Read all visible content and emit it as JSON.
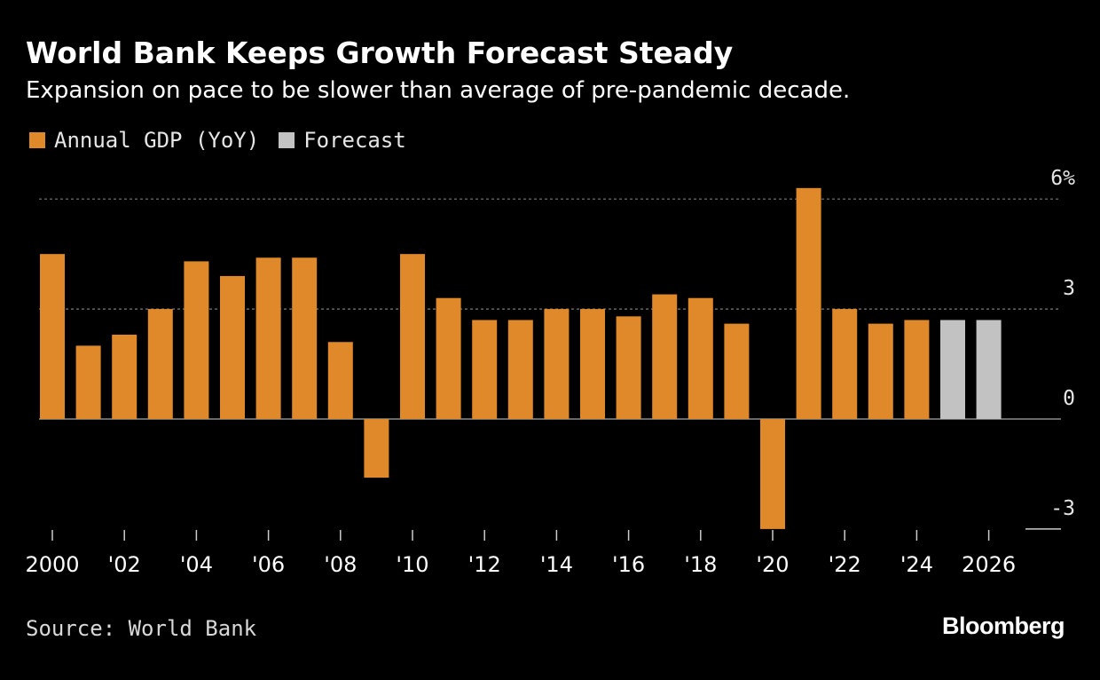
{
  "title": "World Bank Keeps Growth Forecast Steady",
  "subtitle": "Expansion on pace to be slower than average of pre-pandemic decade.",
  "legend": [
    {
      "label": "Annual GDP (YoY)",
      "color": "#e0892b"
    },
    {
      "label": "Forecast",
      "color": "#c2c2c2"
    }
  ],
  "source": "Source: World Bank",
  "brand": "Bloomberg",
  "colors": {
    "actual": "#e0892b",
    "forecast": "#c2c2c2",
    "background": "#000000",
    "gridline": "#7a7a7a",
    "text": "#ffffff"
  },
  "chart_data": {
    "type": "bar",
    "title": "World Bank Keeps Growth Forecast Steady",
    "subtitle": "Expansion on pace to be slower than average of pre-pandemic decade.",
    "xlabel": "",
    "ylabel": "",
    "ylim": [
      -3,
      6
    ],
    "y_ticks": [
      {
        "value": 6,
        "label": "6%"
      },
      {
        "value": 3,
        "label": "3"
      },
      {
        "value": 0,
        "label": "0"
      },
      {
        "value": -3,
        "label": "-3"
      }
    ],
    "y_axis_position": "right",
    "grid": true,
    "legend_position": "top-left",
    "categories": [
      "2000",
      "2001",
      "2002",
      "2003",
      "2004",
      "2005",
      "2006",
      "2007",
      "2008",
      "2009",
      "2010",
      "2011",
      "2012",
      "2013",
      "2014",
      "2015",
      "2016",
      "2017",
      "2018",
      "2019",
      "2020",
      "2021",
      "2022",
      "2023",
      "2024",
      "2025",
      "2026"
    ],
    "x_tick_labels": [
      {
        "category": "2000",
        "label": "2000"
      },
      {
        "category": "2002",
        "label": "'02"
      },
      {
        "category": "2004",
        "label": "'04"
      },
      {
        "category": "2006",
        "label": "'06"
      },
      {
        "category": "2008",
        "label": "'08"
      },
      {
        "category": "2010",
        "label": "'10"
      },
      {
        "category": "2012",
        "label": "'12"
      },
      {
        "category": "2014",
        "label": "'14"
      },
      {
        "category": "2016",
        "label": "'16"
      },
      {
        "category": "2018",
        "label": "'18"
      },
      {
        "category": "2020",
        "label": "'20"
      },
      {
        "category": "2022",
        "label": "'22"
      },
      {
        "category": "2024",
        "label": "'24"
      },
      {
        "category": "2026",
        "label": "2026"
      }
    ],
    "series": [
      {
        "name": "Annual GDP (YoY)",
        "color": "#e0892b",
        "values": [
          4.5,
          2.0,
          2.3,
          3.0,
          4.3,
          3.9,
          4.4,
          4.4,
          2.1,
          -1.6,
          4.5,
          3.3,
          2.7,
          2.7,
          3.0,
          3.0,
          2.8,
          3.4,
          3.3,
          2.6,
          -3.0,
          6.3,
          3.0,
          2.6,
          2.7,
          null,
          null
        ]
      },
      {
        "name": "Forecast",
        "color": "#c2c2c2",
        "values": [
          null,
          null,
          null,
          null,
          null,
          null,
          null,
          null,
          null,
          null,
          null,
          null,
          null,
          null,
          null,
          null,
          null,
          null,
          null,
          null,
          null,
          null,
          null,
          null,
          null,
          2.7,
          2.7
        ]
      }
    ]
  }
}
